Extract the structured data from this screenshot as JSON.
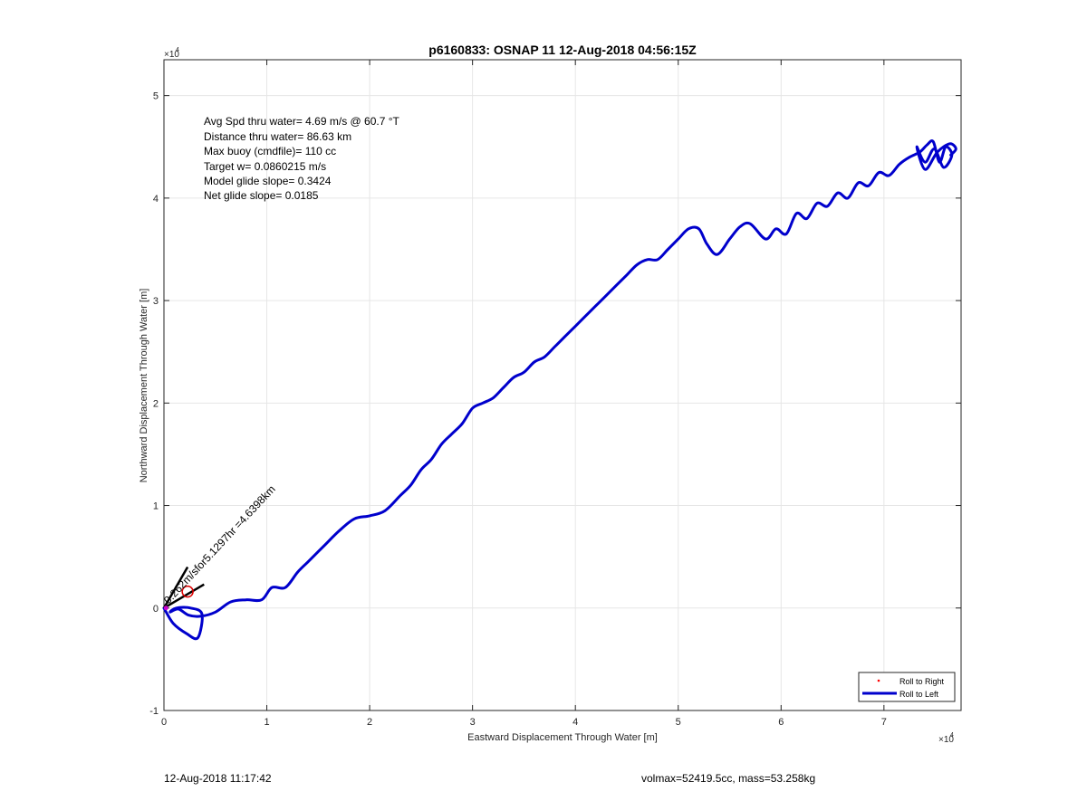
{
  "chart_data": {
    "type": "line",
    "title": "p6160833: OSNAP 11 12-Aug-2018 04:56:15Z",
    "xlabel": "Eastward Displacement Through Water [m]",
    "ylabel": "Northward Displacement Through Water [m]",
    "x_multiplier_label": "×10",
    "x_multiplier_exp": "4",
    "y_multiplier_label": "×10",
    "y_multiplier_exp": "4",
    "xlim": [
      0,
      77500
    ],
    "ylim": [
      -10000,
      53500
    ],
    "xticks": [
      0,
      10000,
      20000,
      30000,
      40000,
      50000,
      60000,
      70000
    ],
    "xtick_labels": [
      "0",
      "1",
      "2",
      "3",
      "4",
      "5",
      "6",
      "7"
    ],
    "yticks": [
      -10000,
      0,
      10000,
      20000,
      30000,
      40000,
      50000
    ],
    "ytick_labels": [
      "-1",
      "0",
      "1",
      "2",
      "3",
      "4",
      "5"
    ],
    "grid": true,
    "legend_placement": "bottom-right",
    "series": [
      {
        "name": "Roll to Right",
        "marker": "point",
        "color": "#ff0000",
        "x": [],
        "y": []
      },
      {
        "name": "Roll to Left",
        "color": "#0000cc",
        "x": [
          0,
          900,
          2200,
          3300,
          3700,
          2600,
          1200,
          600,
          1400,
          2400,
          3600,
          5000,
          6500,
          8000,
          9500,
          10500,
          11800,
          13000,
          14000,
          15500,
          17000,
          18500,
          20000,
          21500,
          23000,
          24000,
          25000,
          26000,
          27000,
          28000,
          29000,
          30000,
          31000,
          32000,
          33000,
          34000,
          35000,
          36000,
          37000,
          38000,
          39000,
          40000,
          41000,
          42000,
          43000,
          44000,
          45000,
          46000,
          47000,
          48000,
          49000,
          50000,
          51000,
          52000,
          52800,
          53800,
          55000,
          56000,
          57000,
          58500,
          59500,
          60500,
          61500,
          62500,
          63500,
          64500,
          65500,
          66500,
          67500,
          68500,
          69500,
          70500,
          71500,
          72500,
          73500,
          74200,
          74800,
          75400,
          76000,
          76600,
          75800,
          74900,
          74000,
          73200,
          74000,
          75200,
          76400,
          77000,
          76500
        ],
        "y": [
          0,
          -1500,
          -2500,
          -2900,
          -600,
          0,
          0,
          -400,
          -100,
          -700,
          -800,
          -400,
          600,
          800,
          800,
          2000,
          2000,
          3500,
          4500,
          6000,
          7500,
          8700,
          9000,
          9500,
          11000,
          12000,
          13500,
          14500,
          16000,
          17000,
          18000,
          19500,
          20000,
          20500,
          21500,
          22500,
          23000,
          24000,
          24500,
          25500,
          26500,
          27500,
          28500,
          29500,
          30500,
          31500,
          32500,
          33500,
          34000,
          34000,
          35000,
          36000,
          37000,
          37000,
          35500,
          34500,
          36000,
          37200,
          37500,
          36000,
          37000,
          36500,
          38500,
          38000,
          39500,
          39200,
          40500,
          40000,
          41500,
          41200,
          42500,
          42200,
          43300,
          44000,
          44500,
          45200,
          45500,
          43500,
          45000,
          44200,
          43000,
          44800,
          43500,
          45000,
          42800,
          44500,
          45300,
          44800,
          44200
        ]
      }
    ],
    "annotation_lines": [
      {
        "x": [
          0,
          2300
        ],
        "y": [
          0,
          4000
        ]
      },
      {
        "x": [
          0,
          3900
        ],
        "y": [
          0,
          2300
        ]
      }
    ],
    "circle_markers": [
      {
        "x": 2300,
        "y": 1600
      }
    ],
    "start_point": {
      "x": 200,
      "y": 0
    },
    "stats_text": [
      "Avg Spd thru water=  4.69 m/s @  60.7 °T",
      "Distance thru water= 86.63 km",
      "Max buoy (cmdfile)= 110 cc",
      "Target w= 0.0860215 m/s",
      "Model glide slope= 0.3424",
      "Net glide slope= 0.0185"
    ],
    "vector_label": "0.262m/sfor5.1297hr =4.6398km"
  },
  "footer": {
    "timestamp": "12-Aug-2018 11:17:42",
    "mass_info": "volmax=52419.5cc, mass=53.258kg"
  }
}
